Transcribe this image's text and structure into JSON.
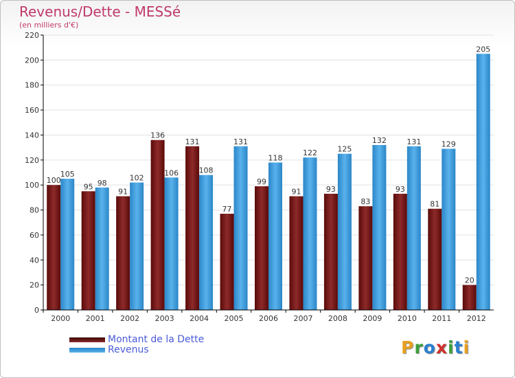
{
  "header": {
    "title": "Revenus/Dette - MESSé",
    "subtitle": "(en milliers d'€)"
  },
  "colors": {
    "debt": "#7a1c1c",
    "revenue": "#3a9de0",
    "axis": "#000000",
    "grid": "#e0e0e0"
  },
  "logo": {
    "text": "Proxiti",
    "letters": [
      {
        "ch": "P",
        "color": "#e8a020"
      },
      {
        "ch": "r",
        "color": "#3aa03a"
      },
      {
        "ch": "o",
        "color": "#2a7fd0"
      },
      {
        "ch": "x",
        "color": "#d0302a"
      },
      {
        "ch": "i",
        "color": "#3aa03a"
      },
      {
        "ch": "t",
        "color": "#2a7fd0"
      },
      {
        "ch": "i",
        "color": "#e8a020"
      }
    ]
  },
  "chart_data": {
    "type": "bar",
    "title": "Revenus/Dette - MESSé",
    "subtitle": "(en milliers d'€)",
    "xlabel": "",
    "ylabel": "",
    "categories": [
      "2000",
      "2001",
      "2002",
      "2003",
      "2004",
      "2005",
      "2006",
      "2007",
      "2008",
      "2009",
      "2010",
      "2011",
      "2012"
    ],
    "series": [
      {
        "name": "Montant de la Dette",
        "color": "#7a1c1c",
        "values": [
          100,
          95,
          91,
          136,
          131,
          77,
          99,
          91,
          93,
          83,
          93,
          81,
          20
        ]
      },
      {
        "name": "Revenus",
        "color": "#3a9de0",
        "values": [
          105,
          98,
          102,
          106,
          108,
          131,
          118,
          122,
          125,
          132,
          131,
          129,
          205
        ]
      }
    ],
    "ylim": [
      0,
      220
    ],
    "yticks": [
      0,
      20,
      40,
      60,
      80,
      100,
      120,
      140,
      160,
      180,
      200,
      220
    ],
    "grid": true,
    "legend": "bottom-left",
    "data_labels": true
  }
}
